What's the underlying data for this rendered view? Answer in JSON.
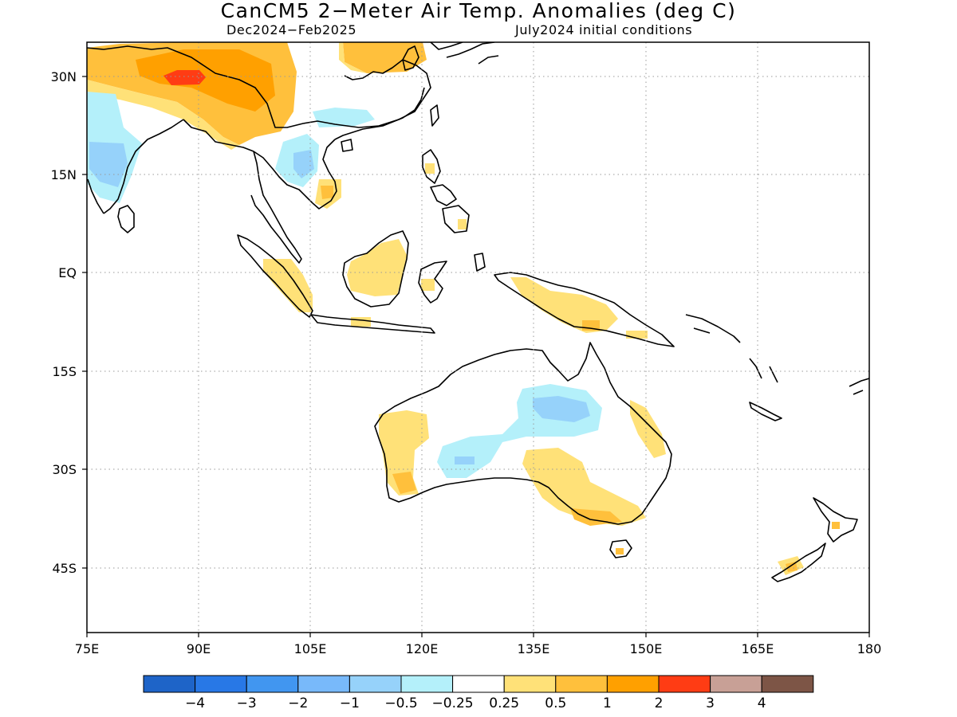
{
  "title": "CanCM5 2−Meter Air Temp. Anomalies (deg C)",
  "subtitle_left": "Dec2024−Feb2025",
  "subtitle_right": "July2024 initial conditions",
  "map": {
    "lat_labels": [
      "30N",
      "15N",
      "EQ",
      "15S",
      "30S",
      "45S"
    ],
    "lon_labels": [
      "75E",
      "90E",
      "105E",
      "120E",
      "135E",
      "150E",
      "165E",
      "180"
    ],
    "lon_range": [
      75,
      180
    ],
    "lat_range": [
      -55,
      35
    ],
    "grid": "dotted"
  },
  "legend": {
    "labels": [
      "−4",
      "−3",
      "−2",
      "−1",
      "−0.5",
      "−0.25",
      "0.25",
      "0.5",
      "1",
      "2",
      "3",
      "4"
    ],
    "colors": [
      "#1e64c8",
      "#2878e6",
      "#4196f0",
      "#78b9fa",
      "#96d2fa",
      "#b4f0fa",
      "#ffffff",
      "#ffe178",
      "#ffc03c",
      "#ffa000",
      "#ff3c14",
      "#c8a096",
      "#7d5546"
    ]
  },
  "regions": [
    {
      "name": "tibet-warm",
      "level": "0.5-1"
    },
    {
      "name": "tibet-hot",
      "level": "2-3"
    },
    {
      "name": "india-cool",
      "level": "-1 to -0.25"
    },
    {
      "name": "indochina-cool",
      "level": "-1 to -0.25"
    },
    {
      "name": "borneo-warm",
      "level": "0.25-0.5"
    },
    {
      "name": "sumatra-warm",
      "level": "0.25-0.5"
    },
    {
      "name": "new-guinea-warm",
      "level": "0.25-0.5"
    },
    {
      "name": "central-australia-cool",
      "level": "-1 to -0.25"
    },
    {
      "name": "west-australia-warm",
      "level": "0.25-1"
    },
    {
      "name": "se-australia-warm",
      "level": "0.25-1"
    },
    {
      "name": "new-zealand-warm",
      "level": "0.25-1"
    }
  ]
}
